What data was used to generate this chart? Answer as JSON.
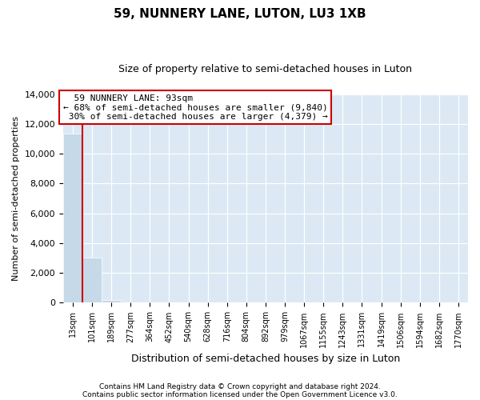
{
  "title": "59, NUNNERY LANE, LUTON, LU3 1XB",
  "subtitle": "Size of property relative to semi-detached houses in Luton",
  "xlabel": "Distribution of semi-detached houses by size in Luton",
  "ylabel": "Number of semi-detached properties",
  "property_label": "59 NUNNERY LANE: 93sqm",
  "pct_smaller": 68,
  "num_smaller": "9,840",
  "pct_larger": 30,
  "num_larger": "4,379",
  "bin_labels": [
    "13sqm",
    "101sqm",
    "189sqm",
    "277sqm",
    "364sqm",
    "452sqm",
    "540sqm",
    "628sqm",
    "716sqm",
    "804sqm",
    "892sqm",
    "979sqm",
    "1067sqm",
    "1155sqm",
    "1243sqm",
    "1331sqm",
    "1419sqm",
    "1506sqm",
    "1594sqm",
    "1682sqm",
    "1770sqm"
  ],
  "bin_values": [
    11350,
    3050,
    200,
    0,
    0,
    0,
    0,
    0,
    0,
    0,
    0,
    0,
    0,
    0,
    0,
    0,
    0,
    0,
    0,
    0,
    0
  ],
  "bar_color": "#c5d9e8",
  "bar_edge_color": "#aec6d8",
  "vline_x": 1,
  "vline_color": "#cc0000",
  "annotation_box_color": "#cc0000",
  "background_color": "#dce9f5",
  "ylim": [
    0,
    14000
  ],
  "yticks": [
    0,
    2000,
    4000,
    6000,
    8000,
    10000,
    12000,
    14000
  ],
  "footer_line1": "Contains HM Land Registry data © Crown copyright and database right 2024.",
  "footer_line2": "Contains public sector information licensed under the Open Government Licence v3.0."
}
